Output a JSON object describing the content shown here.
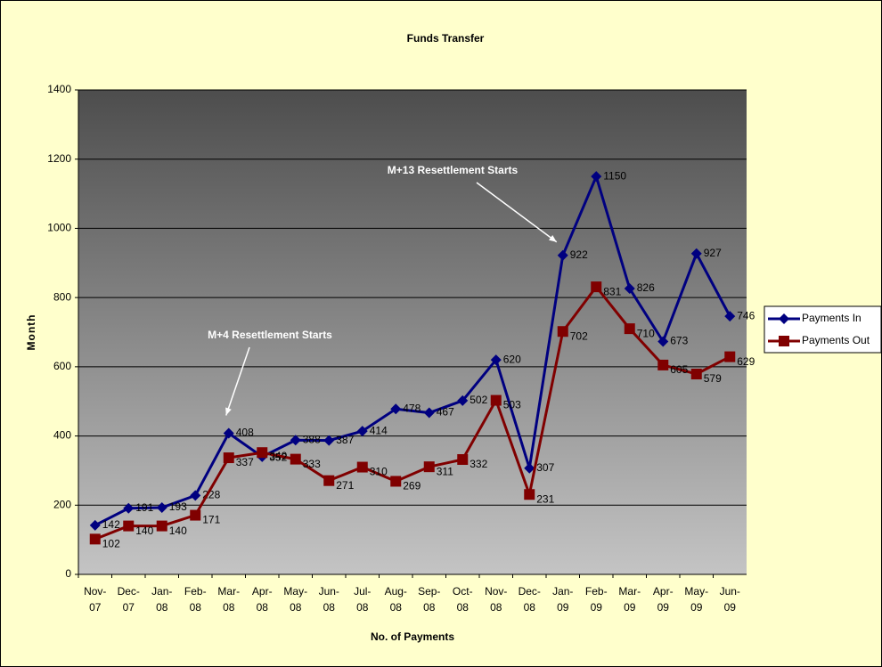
{
  "chart_data": {
    "type": "line",
    "title": "Funds Transfer",
    "x_label": "No. of Payments",
    "y_label": "Month",
    "categories": [
      "Nov-07",
      "Dec-07",
      "Jan-08",
      "Feb-08",
      "Mar-08",
      "Apr-08",
      "May-08",
      "Jun-08",
      "Jul-08",
      "Aug-08",
      "Sep-08",
      "Oct-08",
      "Nov-08",
      "Dec-08",
      "Jan-09",
      "Feb-09",
      "Mar-09",
      "Apr-09",
      "May-09",
      "Jun-09"
    ],
    "series": [
      {
        "name": "Payments In",
        "color": "#000080",
        "marker": "diamond",
        "values": [
          142,
          191,
          193,
          228,
          408,
          340,
          388,
          387,
          414,
          478,
          467,
          502,
          620,
          307,
          922,
          1150,
          826,
          673,
          927,
          746
        ]
      },
      {
        "name": "Payments Out",
        "color": "#800000",
        "marker": "square",
        "values": [
          102,
          140,
          140,
          171,
          337,
          352,
          333,
          271,
          310,
          269,
          311,
          332,
          503,
          231,
          702,
          831,
          710,
          605,
          579,
          629
        ]
      }
    ],
    "ylim": [
      0,
      1400
    ],
    "yticks": [
      0,
      200,
      400,
      600,
      800,
      1000,
      1200,
      1400
    ],
    "grid": true,
    "legend": "right",
    "annotations": [
      {
        "text": "M+4 Resettlement Starts",
        "category": 4
      },
      {
        "text": "M+13 Resettlement Starts",
        "category": 14
      }
    ]
  }
}
